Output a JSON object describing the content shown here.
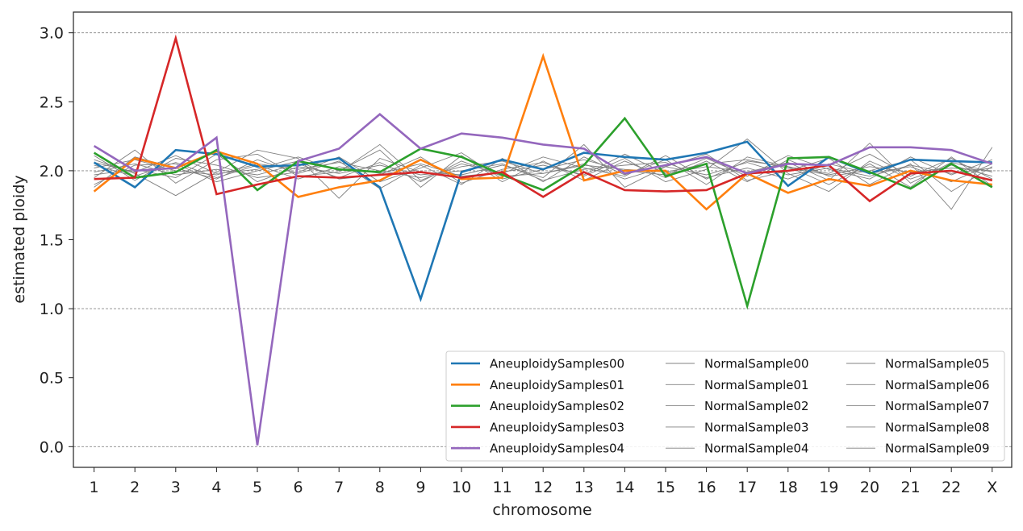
{
  "chart_data": {
    "type": "line",
    "title": "",
    "xlabel": "chromosome",
    "ylabel": "estimated ploidy",
    "categories": [
      "1",
      "2",
      "3",
      "4",
      "5",
      "6",
      "7",
      "8",
      "9",
      "10",
      "11",
      "12",
      "13",
      "14",
      "15",
      "16",
      "17",
      "18",
      "19",
      "20",
      "21",
      "22",
      "X"
    ],
    "ylim": [
      -0.15,
      3.15
    ],
    "yticks": [
      "0.0",
      "0.5",
      "1.0",
      "1.5",
      "2.0",
      "2.5",
      "3.0"
    ],
    "grid": "horizontal dashed at 0.0, 1.0, 2.0, 3.0",
    "legend_position": "lower-right",
    "legend_columns": 3,
    "series": [
      {
        "name": "AneuploidySamples00",
        "color": "#1f77b4",
        "width": 2.6,
        "values": [
          2.06,
          1.88,
          2.15,
          2.12,
          2.03,
          2.04,
          2.09,
          1.88,
          1.07,
          1.99,
          2.08,
          2.01,
          2.13,
          2.1,
          2.08,
          2.13,
          2.21,
          1.89,
          2.1,
          1.98,
          2.08,
          2.07,
          2.06
        ]
      },
      {
        "name": "AneuploidySamples01",
        "color": "#ff7f0e",
        "width": 2.6,
        "values": [
          1.85,
          2.09,
          2.02,
          2.14,
          2.05,
          1.81,
          1.88,
          1.93,
          2.08,
          1.94,
          1.95,
          2.83,
          1.93,
          2.0,
          2.0,
          1.72,
          1.98,
          1.84,
          1.94,
          1.89,
          2.0,
          1.93,
          1.9
        ]
      },
      {
        "name": "AneuploidySamples02",
        "color": "#2ca02c",
        "width": 2.6,
        "values": [
          2.13,
          1.95,
          1.99,
          2.15,
          1.86,
          2.07,
          2.01,
          1.99,
          2.16,
          2.1,
          1.97,
          1.86,
          2.04,
          2.38,
          1.96,
          2.05,
          1.02,
          2.09,
          2.1,
          1.99,
          1.87,
          2.05,
          1.88
        ]
      },
      {
        "name": "AneuploidySamples03",
        "color": "#d62728",
        "width": 2.6,
        "values": [
          1.94,
          1.95,
          2.96,
          1.83,
          1.9,
          1.96,
          1.95,
          1.97,
          1.99,
          1.95,
          1.99,
          1.81,
          1.99,
          1.86,
          1.85,
          1.86,
          1.98,
          2.0,
          2.04,
          1.78,
          1.98,
          2.0,
          1.93
        ]
      },
      {
        "name": "AneuploidySamples04",
        "color": "#9467bd",
        "width": 2.6,
        "values": [
          2.18,
          2.0,
          2.02,
          2.24,
          0.01,
          2.07,
          2.16,
          2.41,
          2.16,
          2.27,
          2.24,
          2.19,
          2.16,
          1.98,
          2.04,
          2.1,
          1.98,
          2.05,
          2.04,
          2.17,
          2.17,
          2.15,
          2.05
        ]
      },
      {
        "name": "NormalSample00",
        "color": "#808080",
        "width": 0.9,
        "values": [
          2.02,
          2.08,
          2.0,
          1.97,
          2.05,
          2.01,
          2.06,
          2.0,
          1.95,
          2.03,
          2.07,
          1.98,
          2.04,
          2.01,
          1.99,
          2.05,
          2.08,
          2.02,
          1.97,
          2.03,
          1.99,
          2.02,
          2.0
        ]
      },
      {
        "name": "NormalSample01",
        "color": "#808080",
        "width": 0.9,
        "values": [
          1.95,
          2.15,
          1.91,
          2.08,
          2.12,
          1.96,
          1.99,
          2.19,
          1.93,
          2.05,
          1.98,
          2.1,
          2.02,
          1.96,
          2.11,
          1.94,
          2.07,
          2.03,
          1.98,
          2.12,
          1.96,
          2.09,
          1.94
        ]
      },
      {
        "name": "NormalSample02",
        "color": "#808080",
        "width": 0.9,
        "values": [
          2.08,
          1.98,
          1.82,
          1.99,
          2.15,
          2.09,
          1.8,
          2.09,
          1.99,
          1.97,
          2.04,
          1.95,
          2.19,
          1.88,
          2.03,
          2.12,
          1.93,
          2.0,
          2.09,
          1.9,
          2.05,
          1.72,
          2.17
        ]
      },
      {
        "name": "NormalSample03",
        "color": "#808080",
        "width": 0.9,
        "values": [
          1.9,
          2.04,
          2.05,
          1.92,
          2.0,
          2.07,
          1.94,
          1.97,
          2.1,
          1.91,
          2.01,
          2.06,
          1.96,
          2.09,
          1.92,
          2.01,
          2.23,
          1.98,
          1.85,
          2.07,
          1.94,
          2.04,
          1.96
        ]
      },
      {
        "name": "NormalSample04",
        "color": "#808080",
        "width": 0.9,
        "values": [
          2.11,
          1.93,
          2.09,
          2.04,
          1.95,
          1.99,
          2.1,
          1.92,
          2.02,
          2.13,
          1.94,
          2.01,
          2.08,
          2.0,
          1.97,
          2.09,
          1.96,
          2.11,
          2.01,
          1.94,
          2.1,
          1.97,
          2.08
        ]
      },
      {
        "name": "NormalSample05",
        "color": "#808080",
        "width": 0.9,
        "values": [
          1.97,
          2.01,
          1.95,
          2.12,
          1.92,
          2.03,
          1.98,
          2.04,
          1.97,
          2.0,
          2.05,
          1.93,
          2.01,
          2.04,
          2.06,
          1.95,
          2.02,
          1.94,
          2.05,
          1.98,
          2.03,
          1.92,
          2.05
        ]
      },
      {
        "name": "NormalSample06",
        "color": "#808080",
        "width": 0.9,
        "values": [
          2.04,
          1.96,
          2.06,
          1.95,
          2.04,
          1.94,
          2.03,
          1.98,
          2.05,
          1.96,
          1.99,
          2.04,
          1.97,
          2.12,
          1.98,
          2.03,
          1.99,
          2.06,
          1.93,
          2.2,
          1.91,
          2.06,
          1.99
        ]
      },
      {
        "name": "NormalSample07",
        "color": "#808080",
        "width": 0.9,
        "values": [
          1.99,
          2.05,
          1.97,
          2.01,
          1.97,
          2.05,
          1.95,
          2.06,
          1.92,
          2.07,
          1.96,
          1.98,
          2.05,
          1.94,
          2.03,
          1.97,
          2.06,
          1.97,
          2.02,
          1.96,
          2.04,
          1.98,
          2.02
        ]
      },
      {
        "name": "NormalSample08",
        "color": "#808080",
        "width": 0.9,
        "values": [
          1.88,
          2.1,
          2.02,
          1.94,
          2.08,
          1.98,
          2.07,
          1.87,
          2.04,
          1.9,
          2.09,
          1.92,
          2.1,
          1.97,
          2.08,
          1.9,
          2.1,
          2.03,
          1.9,
          2.05,
          1.88,
          2.1,
          1.89
        ]
      },
      {
        "name": "NormalSample09",
        "color": "#808080",
        "width": 0.9,
        "values": [
          2.06,
          1.99,
          2.11,
          1.98,
          2.01,
          2.1,
          2.0,
          2.15,
          1.88,
          2.11,
          1.92,
          2.07,
          1.93,
          2.07,
          1.95,
          2.07,
          1.92,
          2.08,
          1.96,
          2.0,
          2.08,
          1.85,
          2.03
        ]
      }
    ]
  }
}
